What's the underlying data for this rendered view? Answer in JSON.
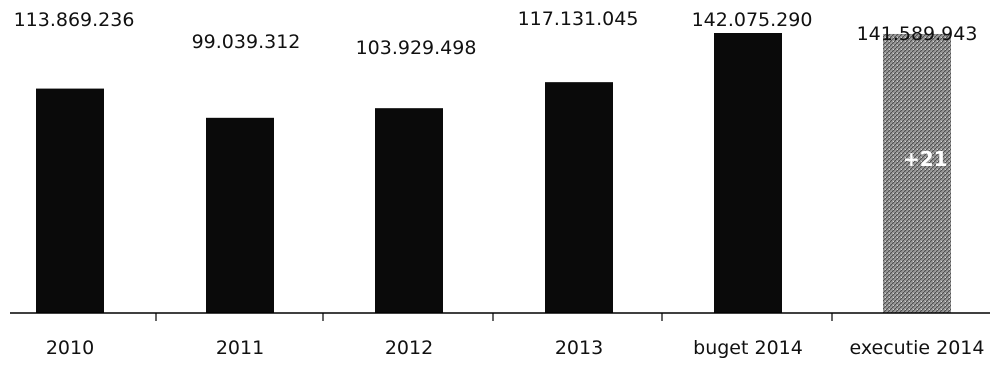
{
  "chart_data": {
    "type": "bar",
    "categories": [
      "2010",
      "2011",
      "2012",
      "2013",
      "buget 2014",
      "executie 2014"
    ],
    "values": [
      113869236,
      99039312,
      103929498,
      117131045,
      142075290,
      141589943
    ],
    "value_labels": [
      "113.869.236",
      "99.039.312",
      "103.929.498",
      "117.131.045",
      "142.075.290",
      "141.589.943"
    ],
    "bar_styles": [
      "solid",
      "solid",
      "solid",
      "solid",
      "solid",
      "hatched"
    ],
    "overlay_text": "+21",
    "title": "",
    "xlabel": "",
    "ylabel": "",
    "ylim": [
      0,
      142075290
    ],
    "grid": false,
    "colors": {
      "bar": "#0a0a0a",
      "hatched_bar": "#8c8c8c",
      "text": "#111111",
      "axis": "#000000"
    }
  }
}
